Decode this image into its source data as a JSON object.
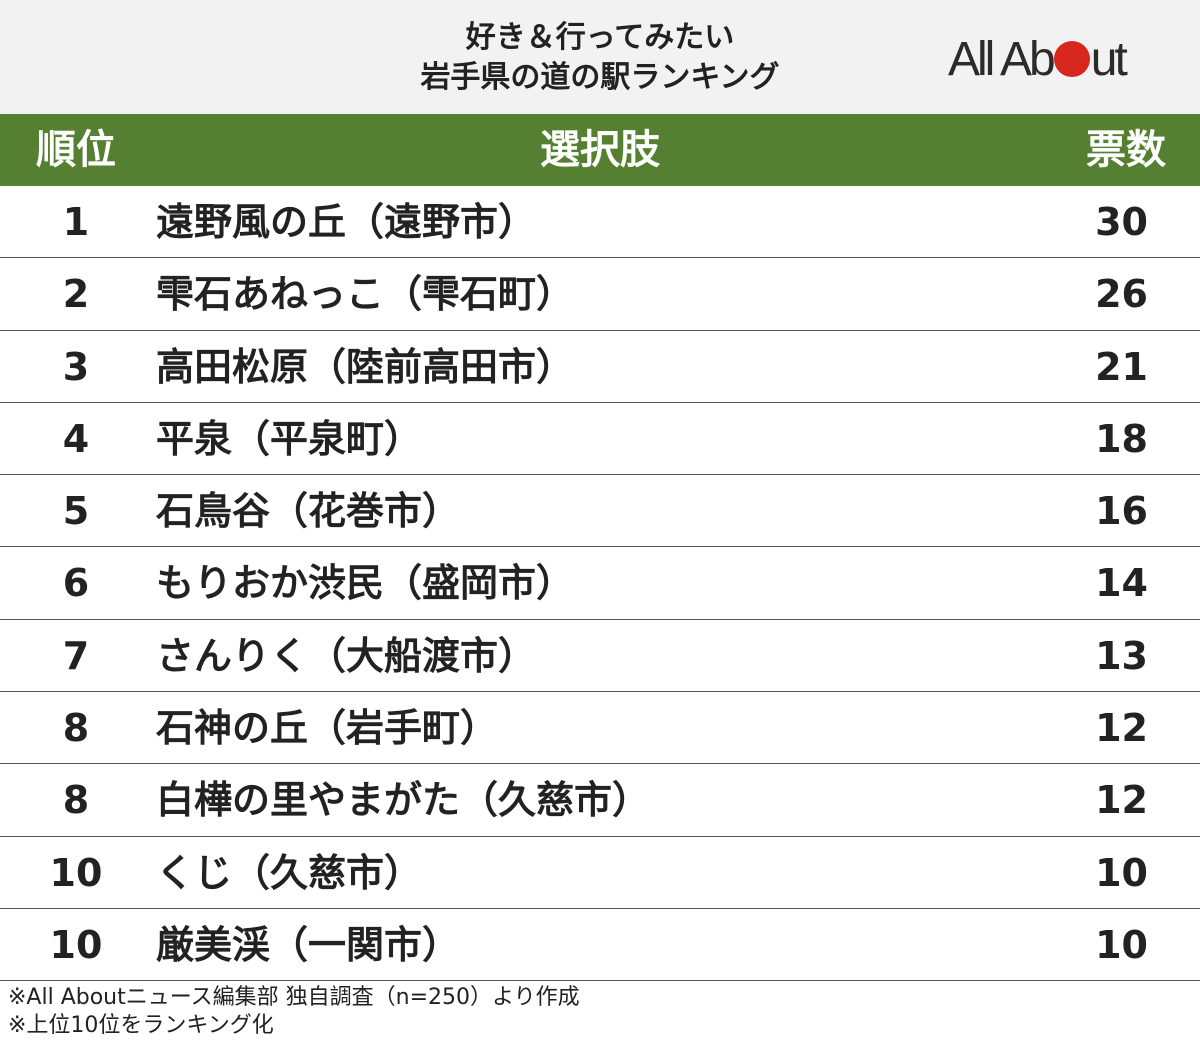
{
  "header": {
    "title_line1": "好き＆行ってみたい",
    "title_line2": "岩手県の道の駅ランキング",
    "logo_text_left": "All Ab",
    "logo_text_right": "ut"
  },
  "colors": {
    "header_bg": "#f2f2f2",
    "column_header_bg": "#558032",
    "logo_dot": "#d7261e"
  },
  "columns": {
    "rank": "順位",
    "choice": "選択肢",
    "votes": "票数"
  },
  "chart_data": {
    "type": "table",
    "columns": [
      "順位",
      "選択肢",
      "票数"
    ],
    "rows": [
      {
        "rank": "1",
        "choice": "遠野風の丘（遠野市）",
        "votes": "30"
      },
      {
        "rank": "2",
        "choice": "雫石あねっこ（雫石町）",
        "votes": "26"
      },
      {
        "rank": "3",
        "choice": "高田松原（陸前高田市）",
        "votes": "21"
      },
      {
        "rank": "4",
        "choice": "平泉（平泉町）",
        "votes": "18"
      },
      {
        "rank": "5",
        "choice": "石鳥谷（花巻市）",
        "votes": "16"
      },
      {
        "rank": "6",
        "choice": "もりおか渋民（盛岡市）",
        "votes": "14"
      },
      {
        "rank": "7",
        "choice": "さんりく（大船渡市）",
        "votes": "13"
      },
      {
        "rank": "8",
        "choice": "石神の丘（岩手町）",
        "votes": "12"
      },
      {
        "rank": "8",
        "choice": "白樺の里やまがた（久慈市）",
        "votes": "12"
      },
      {
        "rank": "10",
        "choice": "くじ（久慈市）",
        "votes": "10"
      },
      {
        "rank": "10",
        "choice": "厳美渓（一関市）",
        "votes": "10"
      }
    ]
  },
  "notes": {
    "line1": "※All Aboutニュース編集部 独自調査（n=250）より作成",
    "line2": "※上位10位をランキング化"
  }
}
